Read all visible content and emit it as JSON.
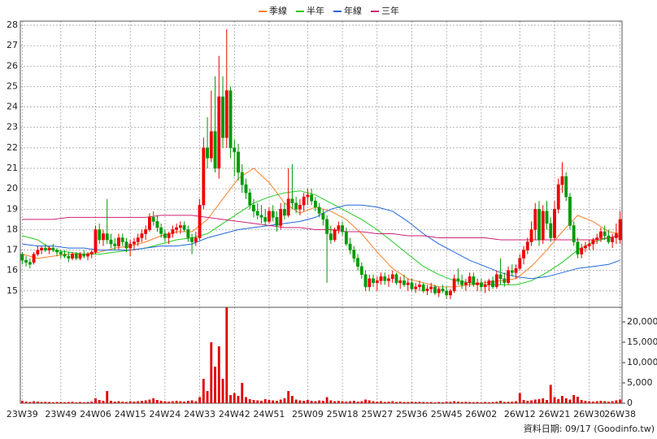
{
  "chart_data": {
    "type": "candlestick",
    "legend": "top",
    "xlim": [
      -0.5,
      155.5
    ],
    "xticks": [
      {
        "value": 0,
        "label": "23W39"
      },
      {
        "value": 10,
        "label": "23W49"
      },
      {
        "value": 19,
        "label": "24W06"
      },
      {
        "value": 28,
        "label": "24W15"
      },
      {
        "value": 37,
        "label": "24W24"
      },
      {
        "value": 46,
        "label": "24W33"
      },
      {
        "value": 55,
        "label": "24W42"
      },
      {
        "value": 64,
        "label": "24W51"
      },
      {
        "value": 74,
        "label": "25W09"
      },
      {
        "value": 83,
        "label": "25W18"
      },
      {
        "value": 92,
        "label": "25W27"
      },
      {
        "value": 101,
        "label": "25W36"
      },
      {
        "value": 110,
        "label": "25W45"
      },
      {
        "value": 119,
        "label": "26W02"
      },
      {
        "value": 129,
        "label": "26W12"
      },
      {
        "value": 138,
        "label": "26W21"
      },
      {
        "value": 147,
        "label": "26W30"
      },
      {
        "value": 155,
        "label": "26W38"
      }
    ],
    "ylim": [
      14.2,
      28.2
    ],
    "yticks": [
      15,
      16,
      17,
      18,
      19,
      20,
      21,
      22,
      23,
      24,
      25,
      26,
      27,
      28
    ],
    "y2lim": [
      0,
      23600
    ],
    "y2ticks": [
      0,
      {
        "value": 5000,
        "label": "5,000"
      },
      {
        "value": 10000,
        "label": "10,000"
      },
      {
        "value": 15000,
        "label": "15,000"
      },
      {
        "value": 20000,
        "label": "20,000"
      }
    ],
    "grid": true,
    "up_color": "#ee0000",
    "down_color": "#009900",
    "volume_color": "#e00000",
    "candles": [
      [
        16.8,
        16.9,
        16.3,
        16.5
      ],
      [
        16.5,
        16.7,
        16.2,
        16.4
      ],
      [
        16.4,
        16.6,
        16.1,
        16.3
      ],
      [
        16.4,
        16.9,
        16.3,
        16.8
      ],
      [
        16.8,
        17.2,
        16.7,
        17.0
      ],
      [
        17.0,
        17.2,
        16.8,
        17.1
      ],
      [
        17.1,
        17.3,
        16.9,
        17.0
      ],
      [
        17.0,
        17.2,
        16.8,
        17.1
      ],
      [
        17.1,
        17.3,
        16.9,
        17.0
      ],
      [
        17.0,
        17.1,
        16.7,
        16.9
      ],
      [
        16.9,
        17.0,
        16.6,
        16.8
      ],
      [
        16.8,
        17.0,
        16.6,
        16.7
      ],
      [
        16.7,
        16.9,
        16.4,
        16.6
      ],
      [
        16.6,
        16.9,
        16.5,
        16.8
      ],
      [
        16.8,
        16.9,
        16.5,
        16.6
      ],
      [
        16.6,
        16.9,
        16.5,
        16.8
      ],
      [
        16.8,
        17.0,
        16.6,
        16.7
      ],
      [
        16.7,
        16.9,
        16.5,
        16.8
      ],
      [
        16.8,
        17.0,
        16.6,
        16.9
      ],
      [
        16.9,
        18.2,
        16.8,
        18.0
      ],
      [
        18.0,
        18.3,
        17.3,
        17.5
      ],
      [
        17.5,
        18.0,
        17.2,
        17.8
      ],
      [
        17.8,
        19.5,
        17.3,
        17.5
      ],
      [
        17.5,
        17.8,
        17.1,
        17.3
      ],
      [
        17.3,
        17.6,
        17.0,
        17.2
      ],
      [
        17.2,
        17.8,
        17.0,
        17.6
      ],
      [
        17.6,
        17.8,
        17.2,
        17.4
      ],
      [
        17.4,
        17.6,
        16.9,
        17.1
      ],
      [
        17.1,
        17.5,
        16.7,
        17.3
      ],
      [
        17.3,
        17.6,
        17.0,
        17.4
      ],
      [
        17.4,
        17.8,
        17.2,
        17.6
      ],
      [
        17.6,
        18.0,
        17.4,
        17.8
      ],
      [
        17.8,
        18.2,
        17.5,
        18.0
      ],
      [
        18.0,
        18.8,
        17.9,
        18.6
      ],
      [
        18.6,
        18.9,
        18.2,
        18.4
      ],
      [
        18.4,
        18.7,
        17.9,
        18.1
      ],
      [
        18.1,
        18.3,
        17.6,
        17.8
      ],
      [
        17.8,
        18.0,
        17.4,
        17.6
      ],
      [
        17.6,
        17.9,
        17.3,
        17.8
      ],
      [
        17.8,
        18.2,
        17.6,
        18.0
      ],
      [
        18.0,
        18.3,
        17.8,
        18.1
      ],
      [
        18.1,
        18.4,
        17.8,
        18.2
      ],
      [
        18.2,
        18.4,
        17.9,
        18.0
      ],
      [
        18.0,
        18.2,
        17.4,
        17.6
      ],
      [
        17.6,
        17.8,
        16.8,
        17.4
      ],
      [
        17.4,
        17.9,
        17.2,
        17.6
      ],
      [
        17.6,
        19.5,
        17.5,
        19.2
      ],
      [
        19.2,
        22.5,
        19.0,
        22.0
      ],
      [
        22.0,
        23.5,
        21.0,
        21.5
      ],
      [
        21.5,
        24.8,
        21.3,
        22.8
      ],
      [
        22.8,
        25.5,
        20.8,
        21.0
      ],
      [
        21.0,
        26.5,
        20.5,
        24.5
      ],
      [
        24.5,
        25.5,
        22.0,
        22.5
      ],
      [
        22.5,
        27.8,
        22.0,
        24.8
      ],
      [
        24.8,
        25.0,
        21.5,
        22.0
      ],
      [
        22.0,
        22.4,
        20.6,
        21.8
      ],
      [
        21.8,
        22.2,
        20.4,
        20.8
      ],
      [
        20.8,
        21.2,
        19.8,
        20.2
      ],
      [
        20.2,
        20.5,
        19.5,
        19.8
      ],
      [
        19.8,
        20.0,
        19.0,
        19.2
      ],
      [
        19.2,
        19.5,
        18.6,
        18.9
      ],
      [
        18.9,
        19.3,
        18.5,
        18.7
      ],
      [
        18.7,
        19.2,
        18.3,
        18.6
      ],
      [
        18.6,
        19.0,
        18.2,
        18.4
      ],
      [
        18.4,
        19.1,
        18.3,
        18.9
      ],
      [
        18.9,
        19.2,
        18.4,
        18.6
      ],
      [
        18.6,
        18.9,
        17.9,
        18.2
      ],
      [
        18.2,
        19.3,
        18.0,
        19.0
      ],
      [
        19.0,
        19.3,
        18.5,
        18.7
      ],
      [
        18.7,
        21.0,
        18.6,
        19.5
      ],
      [
        19.5,
        21.2,
        19.0,
        19.3
      ],
      [
        19.3,
        19.6,
        18.8,
        19.0
      ],
      [
        19.0,
        19.5,
        18.7,
        19.2
      ],
      [
        19.2,
        19.8,
        18.9,
        19.6
      ],
      [
        19.6,
        20.0,
        19.2,
        19.7
      ],
      [
        19.7,
        20.0,
        19.2,
        19.4
      ],
      [
        19.4,
        19.6,
        18.9,
        19.1
      ],
      [
        19.1,
        19.3,
        18.6,
        18.8
      ],
      [
        18.8,
        19.0,
        18.2,
        18.5
      ],
      [
        18.5,
        18.7,
        15.4,
        17.8
      ],
      [
        17.8,
        18.2,
        17.3,
        17.5
      ],
      [
        17.5,
        18.1,
        17.4,
        18.0
      ],
      [
        18.0,
        18.4,
        17.8,
        18.2
      ],
      [
        18.2,
        18.4,
        17.7,
        17.9
      ],
      [
        17.9,
        18.1,
        17.2,
        17.3
      ],
      [
        17.3,
        17.6,
        16.8,
        17.0
      ],
      [
        17.0,
        17.2,
        16.4,
        16.6
      ],
      [
        16.6,
        16.8,
        16.0,
        16.2
      ],
      [
        16.2,
        16.4,
        15.6,
        15.8
      ],
      [
        15.8,
        16.0,
        15.0,
        15.2
      ],
      [
        15.2,
        15.8,
        15.0,
        15.6
      ],
      [
        15.6,
        15.8,
        15.2,
        15.4
      ],
      [
        15.4,
        15.7,
        15.0,
        15.5
      ],
      [
        15.5,
        15.9,
        15.3,
        15.7
      ],
      [
        15.7,
        15.9,
        15.3,
        15.5
      ],
      [
        15.5,
        15.8,
        15.2,
        15.6
      ],
      [
        15.6,
        16.0,
        15.4,
        15.8
      ],
      [
        15.8,
        15.9,
        15.3,
        15.4
      ],
      [
        15.4,
        15.7,
        15.1,
        15.5
      ],
      [
        15.5,
        15.8,
        15.2,
        15.3
      ],
      [
        15.3,
        15.6,
        15.0,
        15.4
      ],
      [
        15.4,
        15.6,
        15.0,
        15.1
      ],
      [
        15.1,
        15.4,
        14.9,
        15.2
      ],
      [
        15.2,
        15.5,
        15.0,
        15.3
      ],
      [
        15.3,
        15.4,
        14.9,
        15.0
      ],
      [
        15.0,
        15.3,
        14.8,
        15.1
      ],
      [
        15.1,
        15.4,
        14.9,
        15.2
      ],
      [
        15.2,
        15.3,
        14.8,
        14.9
      ],
      [
        14.9,
        15.2,
        14.7,
        15.1
      ],
      [
        15.1,
        15.3,
        14.9,
        15.0
      ],
      [
        15.0,
        15.2,
        14.6,
        14.8
      ],
      [
        14.8,
        15.1,
        14.6,
        15.0
      ],
      [
        15.0,
        15.8,
        14.9,
        15.6
      ],
      [
        15.6,
        16.1,
        15.3,
        15.5
      ],
      [
        15.5,
        15.8,
        15.1,
        15.3
      ],
      [
        15.3,
        15.6,
        15.0,
        15.4
      ],
      [
        15.4,
        15.9,
        15.2,
        15.7
      ],
      [
        15.7,
        15.9,
        15.2,
        15.3
      ],
      [
        15.3,
        15.6,
        15.0,
        15.4
      ],
      [
        15.4,
        15.6,
        15.0,
        15.2
      ],
      [
        15.2,
        15.5,
        14.9,
        15.3
      ],
      [
        15.3,
        15.6,
        15.0,
        15.5
      ],
      [
        15.5,
        15.7,
        15.1,
        15.2
      ],
      [
        15.2,
        16.0,
        15.1,
        15.8
      ],
      [
        15.8,
        16.6,
        15.3,
        15.6
      ],
      [
        15.6,
        15.9,
        15.2,
        15.4
      ],
      [
        15.4,
        16.2,
        15.3,
        16.0
      ],
      [
        16.0,
        16.3,
        15.7,
        15.9
      ],
      [
        15.9,
        16.3,
        15.6,
        16.1
      ],
      [
        16.1,
        16.8,
        16.0,
        16.6
      ],
      [
        16.6,
        17.2,
        16.3,
        17.0
      ],
      [
        17.0,
        17.6,
        16.8,
        17.4
      ],
      [
        17.4,
        18.4,
        17.2,
        18.0
      ],
      [
        18.0,
        19.3,
        17.5,
        19.0
      ],
      [
        19.0,
        19.4,
        17.2,
        17.5
      ],
      [
        17.5,
        19.2,
        17.3,
        18.9
      ],
      [
        18.9,
        19.4,
        18.0,
        18.3
      ],
      [
        18.3,
        18.6,
        17.4,
        17.6
      ],
      [
        17.6,
        19.4,
        17.5,
        19.0
      ],
      [
        19.0,
        20.5,
        18.8,
        20.2
      ],
      [
        20.2,
        21.3,
        19.8,
        20.6
      ],
      [
        20.6,
        20.8,
        19.4,
        19.6
      ],
      [
        19.6,
        19.8,
        18.0,
        18.2
      ],
      [
        18.2,
        18.4,
        17.2,
        17.4
      ],
      [
        17.4,
        17.6,
        16.6,
        16.8
      ],
      [
        16.8,
        17.3,
        16.6,
        17.1
      ],
      [
        17.1,
        17.4,
        16.9,
        17.2
      ],
      [
        17.2,
        17.5,
        17.0,
        17.3
      ],
      [
        17.3,
        17.6,
        17.0,
        17.5
      ],
      [
        17.5,
        17.8,
        17.3,
        17.6
      ],
      [
        17.6,
        18.1,
        17.4,
        17.9
      ],
      [
        17.9,
        18.2,
        17.5,
        17.7
      ],
      [
        17.7,
        18.0,
        17.3,
        17.4
      ],
      [
        17.4,
        17.8,
        17.1,
        17.6
      ],
      [
        17.6,
        18.3,
        17.3,
        17.8
      ],
      [
        17.5,
        18.9,
        17.3,
        18.5
      ]
    ],
    "volume": [
      600,
      400,
      300,
      500,
      400,
      300,
      350,
      300,
      250,
      300,
      300,
      250,
      300,
      350,
      200,
      300,
      250,
      300,
      400,
      1200,
      800,
      600,
      3000,
      600,
      400,
      500,
      400,
      300,
      500,
      400,
      500,
      600,
      700,
      900,
      1200,
      800,
      600,
      500,
      400,
      500,
      600,
      500,
      400,
      600,
      700,
      500,
      1500,
      6000,
      3000,
      15000,
      9000,
      14000,
      6000,
      23500,
      2000,
      2500,
      1800,
      5000,
      1500,
      1000,
      800,
      700,
      600,
      1000,
      800,
      700,
      600,
      900,
      1200,
      3000,
      1800,
      900,
      700,
      600,
      800,
      600,
      500,
      700,
      600,
      1500,
      700,
      500,
      600,
      500,
      400,
      500,
      600,
      400,
      500,
      900,
      700,
      500,
      400,
      500,
      300,
      400,
      500,
      300,
      400,
      300,
      300,
      400,
      300,
      350,
      300,
      250,
      300,
      200,
      300,
      250,
      400,
      350,
      500,
      400,
      300,
      350,
      300,
      250,
      300,
      200,
      300,
      250,
      300,
      400,
      600,
      300,
      350,
      400,
      500,
      2500,
      800,
      600,
      700,
      900,
      1000,
      1200,
      800,
      4500,
      1500,
      1000,
      1800,
      1200,
      900,
      2000,
      1600,
      800,
      600,
      500,
      400,
      500,
      600,
      500,
      400,
      500,
      700,
      900
    ],
    "ma_x": [
      0,
      4,
      8,
      12,
      16,
      20,
      24,
      28,
      32,
      36,
      40,
      44,
      48,
      52,
      56,
      60,
      64,
      68,
      72,
      76,
      80,
      84,
      88,
      92,
      96,
      100,
      104,
      108,
      112,
      116,
      120,
      124,
      128,
      132,
      136,
      140,
      144,
      148,
      152,
      155
    ],
    "series": [
      {
        "name": "季線",
        "color": "#ff7f27",
        "values": [
          16.8,
          16.6,
          16.7,
          16.8,
          16.8,
          16.9,
          17.1,
          17.2,
          17.4,
          17.7,
          17.9,
          17.9,
          18.5,
          19.5,
          20.5,
          21.0,
          20.3,
          19.3,
          18.8,
          19.1,
          18.9,
          18.5,
          17.8,
          16.9,
          16.1,
          15.6,
          15.4,
          15.2,
          15.2,
          15.3,
          15.4,
          15.5,
          15.6,
          16.2,
          17.0,
          17.9,
          18.7,
          18.4,
          17.9,
          17.8
        ]
      },
      {
        "name": "半年",
        "color": "#22cc22",
        "values": [
          17.7,
          17.5,
          17.0,
          16.9,
          16.8,
          16.8,
          16.9,
          17.0,
          17.1,
          17.3,
          17.5,
          17.6,
          17.8,
          18.3,
          18.8,
          19.3,
          19.6,
          19.8,
          19.9,
          19.7,
          19.3,
          18.9,
          18.5,
          18.0,
          17.4,
          16.8,
          16.2,
          15.8,
          15.5,
          15.4,
          15.3,
          15.3,
          15.3,
          15.5,
          15.9,
          16.4,
          17.0,
          17.4,
          17.6,
          17.7
        ]
      },
      {
        "name": "年線",
        "color": "#2266dd",
        "values": [
          17.3,
          17.2,
          17.2,
          17.1,
          17.1,
          17.0,
          17.0,
          17.0,
          17.1,
          17.2,
          17.2,
          17.3,
          17.6,
          17.8,
          18.0,
          18.1,
          18.2,
          18.3,
          18.4,
          18.6,
          19.0,
          19.2,
          19.2,
          19.1,
          18.9,
          18.4,
          17.8,
          17.3,
          16.9,
          16.5,
          16.2,
          15.9,
          15.7,
          15.6,
          15.7,
          15.9,
          16.1,
          16.2,
          16.3,
          16.5
        ]
      },
      {
        "name": "三年",
        "color": "#cc2277",
        "values": [
          18.5,
          18.5,
          18.5,
          18.6,
          18.6,
          18.6,
          18.6,
          18.6,
          18.6,
          18.7,
          18.7,
          18.7,
          18.6,
          18.5,
          18.4,
          18.3,
          18.2,
          18.1,
          18.1,
          18.0,
          18.0,
          17.9,
          17.9,
          17.8,
          17.8,
          17.7,
          17.7,
          17.6,
          17.6,
          17.6,
          17.6,
          17.5,
          17.5,
          17.5,
          17.5,
          17.5,
          17.5,
          17.5,
          17.6,
          17.7
        ]
      }
    ],
    "footer": "資料日期: 09/17 (Goodinfo.tw)"
  }
}
